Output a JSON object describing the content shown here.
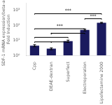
{
  "chart_data": {
    "type": "bar",
    "categories": [
      "Cpp",
      "DEAE-dextran",
      "Superfect",
      "Electroporation",
      "Lipofectamine 2000"
    ],
    "values": [
      4.5,
      2.8,
      9.0,
      50.0,
      150.0
    ],
    "errors": [
      0.7,
      0.4,
      1.5,
      7.0,
      10.0
    ],
    "color": "#1a1a5e",
    "ylabel": [
      "SDF-1 mRNA expression/beta-actin",
      "Fold Induction"
    ],
    "log": "y",
    "ylim": [
      1,
      3000
    ],
    "yticks": [
      {
        "value": 1,
        "label": "10⁰"
      },
      {
        "value": 10,
        "label": "10¹"
      },
      {
        "value": 100,
        "label": "10²"
      },
      {
        "value": 1000,
        "label": "10³"
      }
    ],
    "grid": false,
    "brackets": [
      {
        "from": "Cpp",
        "to": "DEAE-dextran",
        "y": 8.0
      },
      {
        "from": "DEAE-dextran",
        "to": "Superfect",
        "y": 8.0
      },
      {
        "from": "Cpp",
        "to": "Superfect",
        "y": 16.0,
        "label": "*"
      },
      {
        "from": "DEAE-dextran",
        "to": "Electroporation",
        "y": 30.0
      },
      {
        "from": "Cpp",
        "to": "Electroporation",
        "y": 60.0,
        "label": "***"
      },
      {
        "from": "Electroporation",
        "to": "Lipofectamine 2000",
        "y": 280.0,
        "label": "***"
      },
      {
        "from": "Cpp",
        "to": "Lipofectamine 2000",
        "y": 600.0,
        "label": "***"
      }
    ]
  }
}
